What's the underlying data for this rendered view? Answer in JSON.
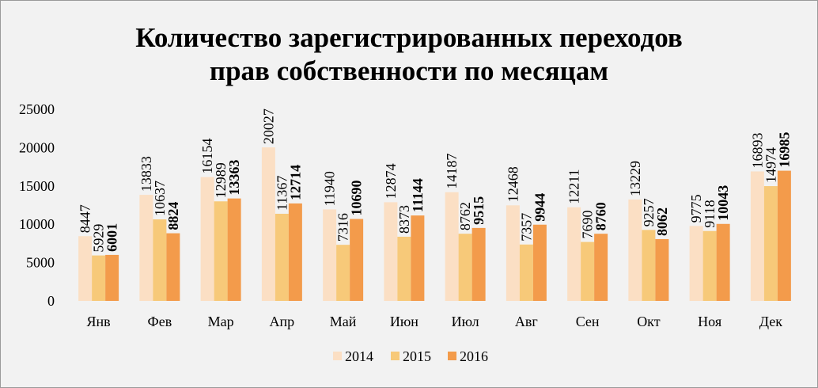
{
  "chart_data": {
    "type": "bar",
    "title_lines": [
      "Количество зарегистрированных переходов",
      "прав собственности по месяцам"
    ],
    "categories": [
      "Янв",
      "Фев",
      "Мар",
      "Апр",
      "Май",
      "Июн",
      "Июл",
      "Авг",
      "Сен",
      "Окт",
      "Ноя",
      "Дек"
    ],
    "series": [
      {
        "name": "2014",
        "color": "#fbdfc4",
        "bold_labels": false,
        "values": [
          8447,
          13833,
          16154,
          20027,
          11940,
          12874,
          14187,
          12468,
          12211,
          13229,
          9775,
          16893
        ],
        "labels": [
          "8447",
          "13833",
          "16154",
          "20027",
          "11940",
          "12874",
          "14187",
          "12468",
          "12211",
          "13229",
          "9775",
          "16893"
        ]
      },
      {
        "name": "2015",
        "color": "#f7c979",
        "bold_labels": false,
        "values": [
          5929,
          10637,
          12989,
          11367,
          7316,
          8373,
          8762,
          7357,
          7690,
          9257,
          9118,
          14974
        ],
        "labels": [
          "5929",
          "10637",
          "12989",
          "11367",
          "7316",
          "8373",
          "8762",
          "7357",
          "7690",
          "9257",
          "9118",
          "14974"
        ]
      },
      {
        "name": "2016",
        "color": "#f39b4b",
        "bold_labels": true,
        "values": [
          6001,
          8824,
          13363,
          12714,
          10690,
          11144,
          9515,
          9944,
          8760,
          8062,
          10043,
          16985
        ],
        "labels": [
          "6001",
          "8824",
          "13363",
          "12714",
          "10690",
          "11144",
          "9515",
          "9944",
          "8760",
          "8062",
          "10043",
          "16985"
        ]
      }
    ],
    "ylim": [
      0,
      25000
    ],
    "yticks": [
      0,
      5000,
      10000,
      15000,
      20000,
      25000
    ],
    "ytick_labels": [
      "0",
      "5000",
      "10000",
      "15000",
      "20000",
      "25000"
    ],
    "grid": false,
    "legend_position": "bottom"
  }
}
